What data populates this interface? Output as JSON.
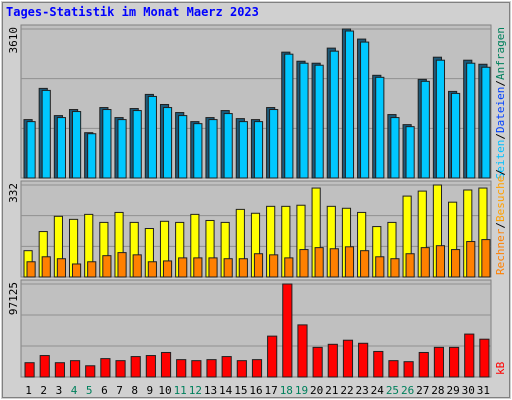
{
  "chart_data": {
    "type": "bar",
    "title": "Tages-Statistik im Monat Maerz 2023",
    "categories": [
      "1",
      "2",
      "3",
      "4",
      "5",
      "6",
      "7",
      "8",
      "9",
      "10",
      "11",
      "12",
      "13",
      "14",
      "15",
      "16",
      "17",
      "18",
      "19",
      "20",
      "21",
      "22",
      "23",
      "24",
      "25",
      "26",
      "27",
      "28",
      "29",
      "30",
      "31"
    ],
    "category_colors": [
      "#000000",
      "#000000",
      "#000000",
      "#00805c",
      "#00805c",
      "#000000",
      "#000000",
      "#000000",
      "#000000",
      "#000000",
      "#00805c",
      "#00805c",
      "#000000",
      "#000000",
      "#000000",
      "#000000",
      "#000000",
      "#00805c",
      "#00805c",
      "#000000",
      "#000000",
      "#000000",
      "#000000",
      "#000000",
      "#00805c",
      "#00805c",
      "#000000",
      "#000000",
      "#000000",
      "#000000",
      "#000000"
    ],
    "panels": [
      {
        "ylim": [
          0,
          3610
        ],
        "yticks": [
          3610
        ],
        "legend": [
          {
            "label": "Seiten",
            "color": "#00c0ff"
          },
          {
            "label": "/",
            "color": "#000000"
          },
          {
            "label": "Dateien",
            "color": "#0040ff"
          },
          {
            "label": "/",
            "color": "#000000"
          },
          {
            "label": "Anfragen",
            "color": "#00805c"
          }
        ],
        "series": [
          {
            "color": "#1c5a7a",
            "values": [
              1415,
              2171,
              1512,
              1659,
              1098,
              1707,
              1464,
              1683,
              2025,
              1781,
              1586,
              1366,
              1464,
              1634,
              1439,
              1415,
              1707,
              3049,
              2829,
              2781,
              3147,
              3610,
              3366,
              2488,
              1537,
              1293,
              2390,
              2927,
              2098,
              2854,
              2756
            ]
          },
          {
            "color": "#00c8ff",
            "values": [
              1366,
              2122,
              1464,
              1610,
              1073,
              1659,
              1415,
              1634,
              1976,
              1707,
              1512,
              1317,
              1415,
              1561,
              1366,
              1366,
              1659,
              3000,
              2781,
              2732,
              3073,
              3561,
              3293,
              2439,
              1464,
              1244,
              2342,
              2854,
              2049,
              2781,
              2683
            ]
          }
        ]
      },
      {
        "ylim": [
          0,
          332
        ],
        "yticks": [
          332
        ],
        "legend": [
          {
            "label": "Rechner",
            "color": "#ff8000"
          },
          {
            "label": "/",
            "color": "#000000"
          },
          {
            "label": "Besuche",
            "color": "#ffa000"
          },
          {
            "label": "/",
            "color": "#000000"
          }
        ],
        "series": [
          {
            "color": "#ffff00",
            "values": [
              95,
              164,
              219,
              208,
              226,
              197,
              233,
              197,
              175,
              201,
              197,
              226,
              204,
              197,
              244,
              230,
              255,
              255,
              259,
              321,
              255,
              248,
              233,
              182,
              197,
              292,
              310,
              332,
              270,
              314,
              321
            ]
          },
          {
            "color": "#ff8000",
            "values": [
              55,
              73,
              66,
              47,
              55,
              77,
              88,
              80,
              55,
              58,
              69,
              69,
              69,
              66,
              66,
              84,
              80,
              69,
              99,
              106,
              102,
              109,
              95,
              73,
              66,
              84,
              106,
              113,
              99,
              128,
              135
            ]
          }
        ]
      },
      {
        "ylim": [
          0,
          97125
        ],
        "yticks": [
          97125
        ],
        "legend": [
          {
            "label": "kB",
            "color": "#ff0000"
          }
        ],
        "series": [
          {
            "color": "#ff0000",
            "values": [
              14940,
              22410,
              14940,
              17080,
              11740,
              19210,
              17080,
              21340,
              22410,
              25610,
              18140,
              17080,
              18140,
              21340,
              17080,
              18140,
              42690,
              97125,
              54430,
              30950,
              34150,
              38420,
              35220,
              26680,
              17080,
              16010,
              25610,
              30950,
              30950,
              44820,
              39490
            ]
          }
        ]
      }
    ]
  }
}
